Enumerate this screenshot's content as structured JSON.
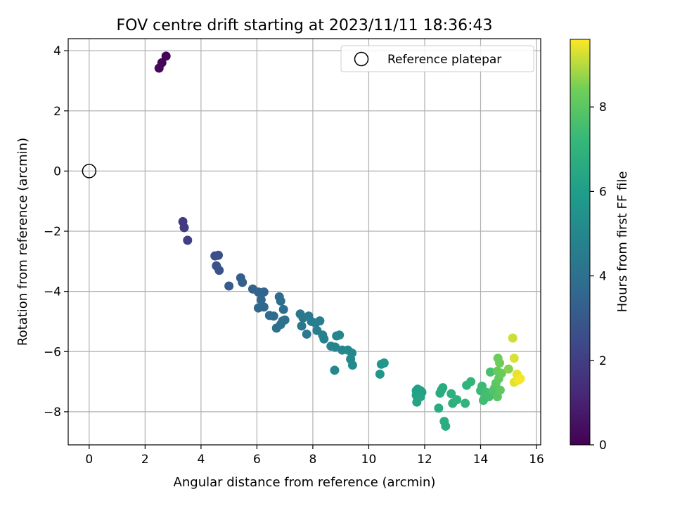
{
  "chart_data": {
    "type": "scatter",
    "title": "FOV centre drift starting at 2023/11/11 18:36:43",
    "xlabel": "Angular distance from reference (arcmin)",
    "ylabel": "Rotation from reference (arcmin)",
    "xlim": [
      -0.75,
      16.15
    ],
    "ylim": [
      -9.1,
      4.4
    ],
    "xticks": [
      0,
      2,
      4,
      6,
      8,
      10,
      12,
      14,
      16
    ],
    "yticks": [
      -8,
      -6,
      -4,
      -2,
      0,
      2,
      4
    ],
    "grid": true,
    "legend": {
      "placement": "top-right",
      "label": "Reference platepar"
    },
    "reference_point": {
      "x": 0,
      "y": 0
    },
    "colorbar": {
      "label": "Hours from first FF file",
      "colormap": "viridis",
      "range": [
        0,
        9.6
      ],
      "ticks": [
        0,
        2,
        4,
        6,
        8
      ]
    },
    "points": [
      [
        2.75,
        3.82,
        0.1
      ],
      [
        2.6,
        3.6,
        0.15
      ],
      [
        2.5,
        3.42,
        0.2
      ],
      [
        3.35,
        -1.68,
        1.9
      ],
      [
        3.4,
        -1.88,
        1.95
      ],
      [
        3.52,
        -2.3,
        2.0
      ],
      [
        4.5,
        -2.82,
        2.6
      ],
      [
        4.62,
        -2.8,
        2.65
      ],
      [
        4.55,
        -3.15,
        2.7
      ],
      [
        4.65,
        -3.3,
        2.75
      ],
      [
        5.0,
        -3.82,
        3.1
      ],
      [
        5.42,
        -3.55,
        3.2
      ],
      [
        5.48,
        -3.7,
        3.25
      ],
      [
        5.85,
        -3.92,
        3.4
      ],
      [
        6.05,
        -4.02,
        3.45
      ],
      [
        6.25,
        -4.02,
        3.5
      ],
      [
        6.15,
        -4.28,
        3.55
      ],
      [
        6.05,
        -4.55,
        3.6
      ],
      [
        6.25,
        -4.52,
        3.6
      ],
      [
        6.45,
        -4.8,
        3.7
      ],
      [
        6.6,
        -4.82,
        3.75
      ],
      [
        6.8,
        -4.18,
        3.8
      ],
      [
        6.85,
        -4.32,
        3.85
      ],
      [
        6.95,
        -4.6,
        3.9
      ],
      [
        6.7,
        -5.22,
        3.9
      ],
      [
        6.85,
        -5.1,
        3.95
      ],
      [
        6.92,
        -4.98,
        4.0
      ],
      [
        7.0,
        -4.95,
        4.0
      ],
      [
        7.55,
        -4.75,
        4.3
      ],
      [
        7.65,
        -4.88,
        4.35
      ],
      [
        7.6,
        -5.15,
        4.35
      ],
      [
        7.78,
        -5.42,
        4.4
      ],
      [
        7.85,
        -4.82,
        4.45
      ],
      [
        7.95,
        -5.0,
        4.5
      ],
      [
        8.1,
        -5.05,
        4.55
      ],
      [
        8.25,
        -4.98,
        4.6
      ],
      [
        8.15,
        -5.3,
        4.6
      ],
      [
        8.35,
        -5.45,
        4.7
      ],
      [
        8.4,
        -5.58,
        4.75
      ],
      [
        8.65,
        -5.82,
        4.85
      ],
      [
        8.8,
        -5.85,
        4.9
      ],
      [
        8.85,
        -5.48,
        4.9
      ],
      [
        8.95,
        -5.45,
        4.95
      ],
      [
        8.78,
        -6.62,
        4.95
      ],
      [
        9.05,
        -5.95,
        5.0
      ],
      [
        9.25,
        -5.95,
        5.05
      ],
      [
        9.4,
        -6.05,
        5.1
      ],
      [
        9.35,
        -6.25,
        5.1
      ],
      [
        9.42,
        -6.45,
        5.15
      ],
      [
        10.45,
        -6.42,
        5.6
      ],
      [
        10.55,
        -6.38,
        5.65
      ],
      [
        10.4,
        -6.75,
        5.65
      ],
      [
        11.7,
        -7.3,
        6.1
      ],
      [
        11.75,
        -7.25,
        6.1
      ],
      [
        11.85,
        -7.3,
        6.15
      ],
      [
        11.9,
        -7.35,
        6.15
      ],
      [
        11.7,
        -7.45,
        6.2
      ],
      [
        11.75,
        -7.55,
        6.2
      ],
      [
        11.85,
        -7.5,
        6.25
      ],
      [
        11.72,
        -7.68,
        6.25
      ],
      [
        12.5,
        -7.88,
        6.6
      ],
      [
        12.6,
        -7.28,
        6.6
      ],
      [
        12.65,
        -7.2,
        6.65
      ],
      [
        12.55,
        -7.38,
        6.65
      ],
      [
        12.7,
        -8.32,
        6.7
      ],
      [
        12.75,
        -8.48,
        6.7
      ],
      [
        12.95,
        -7.4,
        6.8
      ],
      [
        13.0,
        -7.72,
        6.8
      ],
      [
        13.15,
        -7.6,
        6.85
      ],
      [
        13.45,
        -7.72,
        7.0
      ],
      [
        13.5,
        -7.12,
        7.0
      ],
      [
        13.65,
        -7.0,
        7.05
      ],
      [
        14.0,
        -7.3,
        7.3
      ],
      [
        14.05,
        -7.15,
        7.35
      ],
      [
        14.1,
        -7.62,
        7.4
      ],
      [
        14.15,
        -7.55,
        7.45
      ],
      [
        14.2,
        -7.35,
        7.5
      ],
      [
        14.3,
        -7.5,
        7.55
      ],
      [
        14.35,
        -6.68,
        7.6
      ],
      [
        14.45,
        -7.3,
        7.8
      ],
      [
        14.5,
        -7.22,
        7.85
      ],
      [
        14.6,
        -7.5,
        7.95
      ],
      [
        14.55,
        -7.05,
        8.0
      ],
      [
        14.7,
        -7.28,
        8.05
      ],
      [
        14.65,
        -6.9,
        8.1
      ],
      [
        14.6,
        -6.65,
        8.2
      ],
      [
        14.75,
        -6.72,
        8.25
      ],
      [
        14.62,
        -6.22,
        8.3
      ],
      [
        14.68,
        -6.38,
        8.35
      ],
      [
        15.0,
        -6.58,
        8.6
      ],
      [
        15.15,
        -5.55,
        9.2
      ],
      [
        15.2,
        -6.22,
        9.3
      ],
      [
        15.2,
        -7.02,
        9.35
      ],
      [
        15.3,
        -6.75,
        9.4
      ],
      [
        15.35,
        -6.95,
        9.5
      ],
      [
        15.42,
        -6.9,
        9.55
      ]
    ]
  }
}
